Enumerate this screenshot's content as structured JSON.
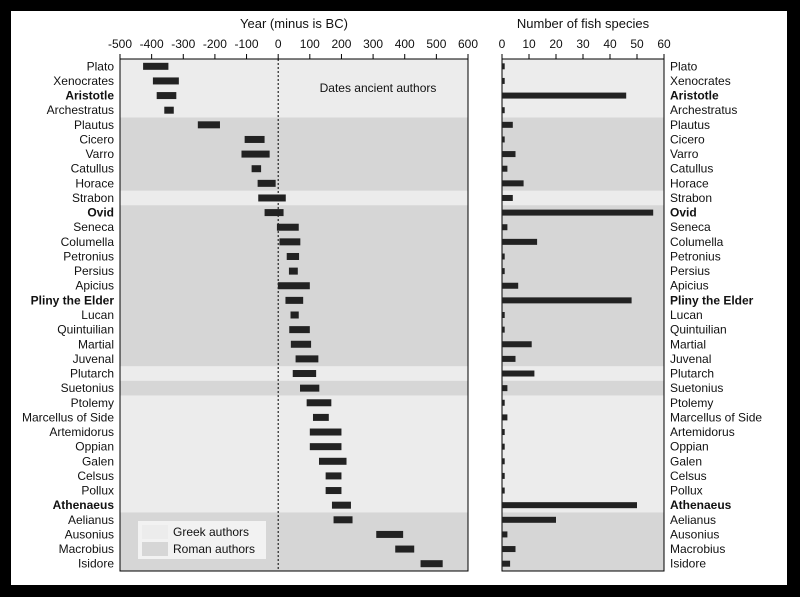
{
  "chart_data": [
    {
      "type": "bar",
      "title": "Year (minus is BC)",
      "annotation": "Dates ancient authors",
      "xlim": [
        -500,
        600
      ],
      "xticks": [
        "-500",
        "-400",
        "-300",
        "-200",
        "-100",
        "0",
        "100",
        "200",
        "300",
        "400",
        "500",
        "600"
      ],
      "reference_line_x": 0,
      "categories": [
        "Plato",
        "Xenocrates",
        "Aristotle",
        "Archestratus",
        "Plautus",
        "Cicero",
        "Varro",
        "Catullus",
        "Horace",
        "Strabon",
        "Ovid",
        "Seneca",
        "Columella",
        "Petronius",
        "Persius",
        "Apicius",
        "Pliny the Elder",
        "Lucan",
        "Quintuilian",
        "Martial",
        "Juvenal",
        "Plutarch",
        "Suetonius",
        "Ptolemy",
        "Marcellus of Side",
        "Artemidorus",
        "Oppian",
        "Galen",
        "Celsus",
        "Pollux",
        "Athenaeus",
        "Aelianus",
        "Ausonius",
        "Macrobius",
        "Isidore"
      ],
      "bold_categories": [
        "Aristotle",
        "Ovid",
        "Pliny the Elder",
        "Athenaeus"
      ],
      "origin": [
        "Greek",
        "Greek",
        "Greek",
        "Greek",
        "Roman",
        "Roman",
        "Roman",
        "Roman",
        "Roman",
        "Greek",
        "Roman",
        "Roman",
        "Roman",
        "Roman",
        "Roman",
        "Roman",
        "Roman",
        "Roman",
        "Roman",
        "Roman",
        "Roman",
        "Greek",
        "Roman",
        "Greek",
        "Greek",
        "Greek",
        "Greek",
        "Greek",
        "Greek",
        "Greek",
        "Greek",
        "Roman",
        "Roman",
        "Roman",
        "Roman"
      ],
      "ranges": [
        [
          -427,
          -347
        ],
        [
          -396,
          -314
        ],
        [
          -384,
          -322
        ],
        [
          -360,
          -330
        ],
        [
          -254,
          -184
        ],
        [
          -106,
          -43
        ],
        [
          -116,
          -27
        ],
        [
          -84,
          -54
        ],
        [
          -65,
          -8
        ],
        [
          -63,
          24
        ],
        [
          -43,
          17
        ],
        [
          -4,
          65
        ],
        [
          4,
          70
        ],
        [
          27,
          66
        ],
        [
          34,
          62
        ],
        [
          -1,
          100
        ],
        [
          23,
          79
        ],
        [
          39,
          65
        ],
        [
          35,
          100
        ],
        [
          40,
          104
        ],
        [
          55,
          127
        ],
        [
          46,
          120
        ],
        [
          69,
          130
        ],
        [
          90,
          168
        ],
        [
          110,
          160
        ],
        [
          100,
          200
        ],
        [
          100,
          200
        ],
        [
          129,
          216
        ],
        [
          150,
          200
        ],
        [
          150,
          200
        ],
        [
          170,
          230
        ],
        [
          175,
          235
        ],
        [
          310,
          395
        ],
        [
          370,
          430
        ],
        [
          450,
          520
        ]
      ],
      "legend": [
        {
          "label": "Greek authors",
          "color": "#ececec"
        },
        {
          "label": "Roman authors",
          "color": "#d6d6d6"
        }
      ],
      "legend_position": "bottom-left"
    },
    {
      "type": "bar",
      "title": "Number of fish species",
      "xlim": [
        0,
        60
      ],
      "xticks": [
        "0",
        "10",
        "20",
        "30",
        "40",
        "50",
        "60"
      ],
      "categories": [
        "Plato",
        "Xenocrates",
        "Aristotle",
        "Archestratus",
        "Plautus",
        "Cicero",
        "Varro",
        "Catullus",
        "Horace",
        "Strabon",
        "Ovid",
        "Seneca",
        "Columella",
        "Petronius",
        "Persius",
        "Apicius",
        "Pliny the Elder",
        "Lucan",
        "Quintuilian",
        "Martial",
        "Juvenal",
        "Plutarch",
        "Suetonius",
        "Ptolemy",
        "Marcellus of Side",
        "Artemidorus",
        "Oppian",
        "Galen",
        "Celsus",
        "Pollux",
        "Athenaeus",
        "Aelianus",
        "Ausonius",
        "Macrobius",
        "Isidore"
      ],
      "values": [
        1,
        1,
        46,
        1,
        4,
        1,
        5,
        2,
        8,
        4,
        56,
        2,
        13,
        1,
        1,
        6,
        48,
        1,
        1,
        11,
        5,
        12,
        2,
        1,
        2,
        1,
        1,
        1,
        1,
        1,
        50,
        20,
        2,
        5,
        3
      ]
    }
  ]
}
